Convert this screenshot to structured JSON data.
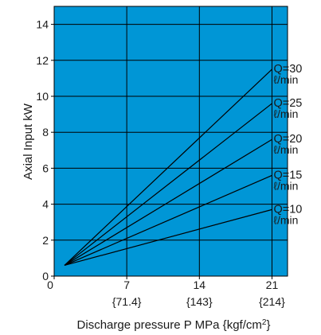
{
  "chart_data": {
    "type": "line",
    "title": "",
    "xlabel": "Discharge pressure P MPa {kgf/cm2}",
    "xlabel_main": "Discharge pressure P MPa {kgf/cm",
    "xlabel_sup": "2",
    "xlabel_tail": "}",
    "ylabel": "Axial Input kW",
    "xlim": [
      0,
      22.5
    ],
    "ylim": [
      0,
      15
    ],
    "grid": true,
    "background_color": "#0096d6",
    "line_color": "#000000",
    "x_ticks": [
      {
        "value": 0,
        "label": "0",
        "sub": ""
      },
      {
        "value": 7,
        "label": "7",
        "sub": "{71.4}"
      },
      {
        "value": 14,
        "label": "14",
        "sub": "{143}"
      },
      {
        "value": 21,
        "label": "21",
        "sub": "{214}"
      }
    ],
    "y_ticks": [
      {
        "value": 0,
        "label": "0"
      },
      {
        "value": 2,
        "label": "2"
      },
      {
        "value": 4,
        "label": "4"
      },
      {
        "value": 6,
        "label": "6"
      },
      {
        "value": 8,
        "label": "8"
      },
      {
        "value": 10,
        "label": "10"
      },
      {
        "value": 12,
        "label": "12"
      },
      {
        "value": 14,
        "label": "14"
      }
    ],
    "series": [
      {
        "name": "Q=10",
        "unit": "ℓ/min",
        "x": [
          1,
          21
        ],
        "y": [
          0.6,
          3.7
        ]
      },
      {
        "name": "Q=15",
        "unit": "ℓ/min",
        "x": [
          1,
          21
        ],
        "y": [
          0.6,
          5.6
        ]
      },
      {
        "name": "Q=20",
        "unit": "ℓ/min",
        "x": [
          1,
          21
        ],
        "y": [
          0.6,
          7.6
        ]
      },
      {
        "name": "Q=25",
        "unit": "ℓ/min",
        "x": [
          1,
          21
        ],
        "y": [
          0.6,
          9.6
        ]
      },
      {
        "name": "Q=30",
        "unit": "ℓ/min",
        "x": [
          1,
          21
        ],
        "y": [
          0.6,
          11.5
        ]
      }
    ]
  }
}
